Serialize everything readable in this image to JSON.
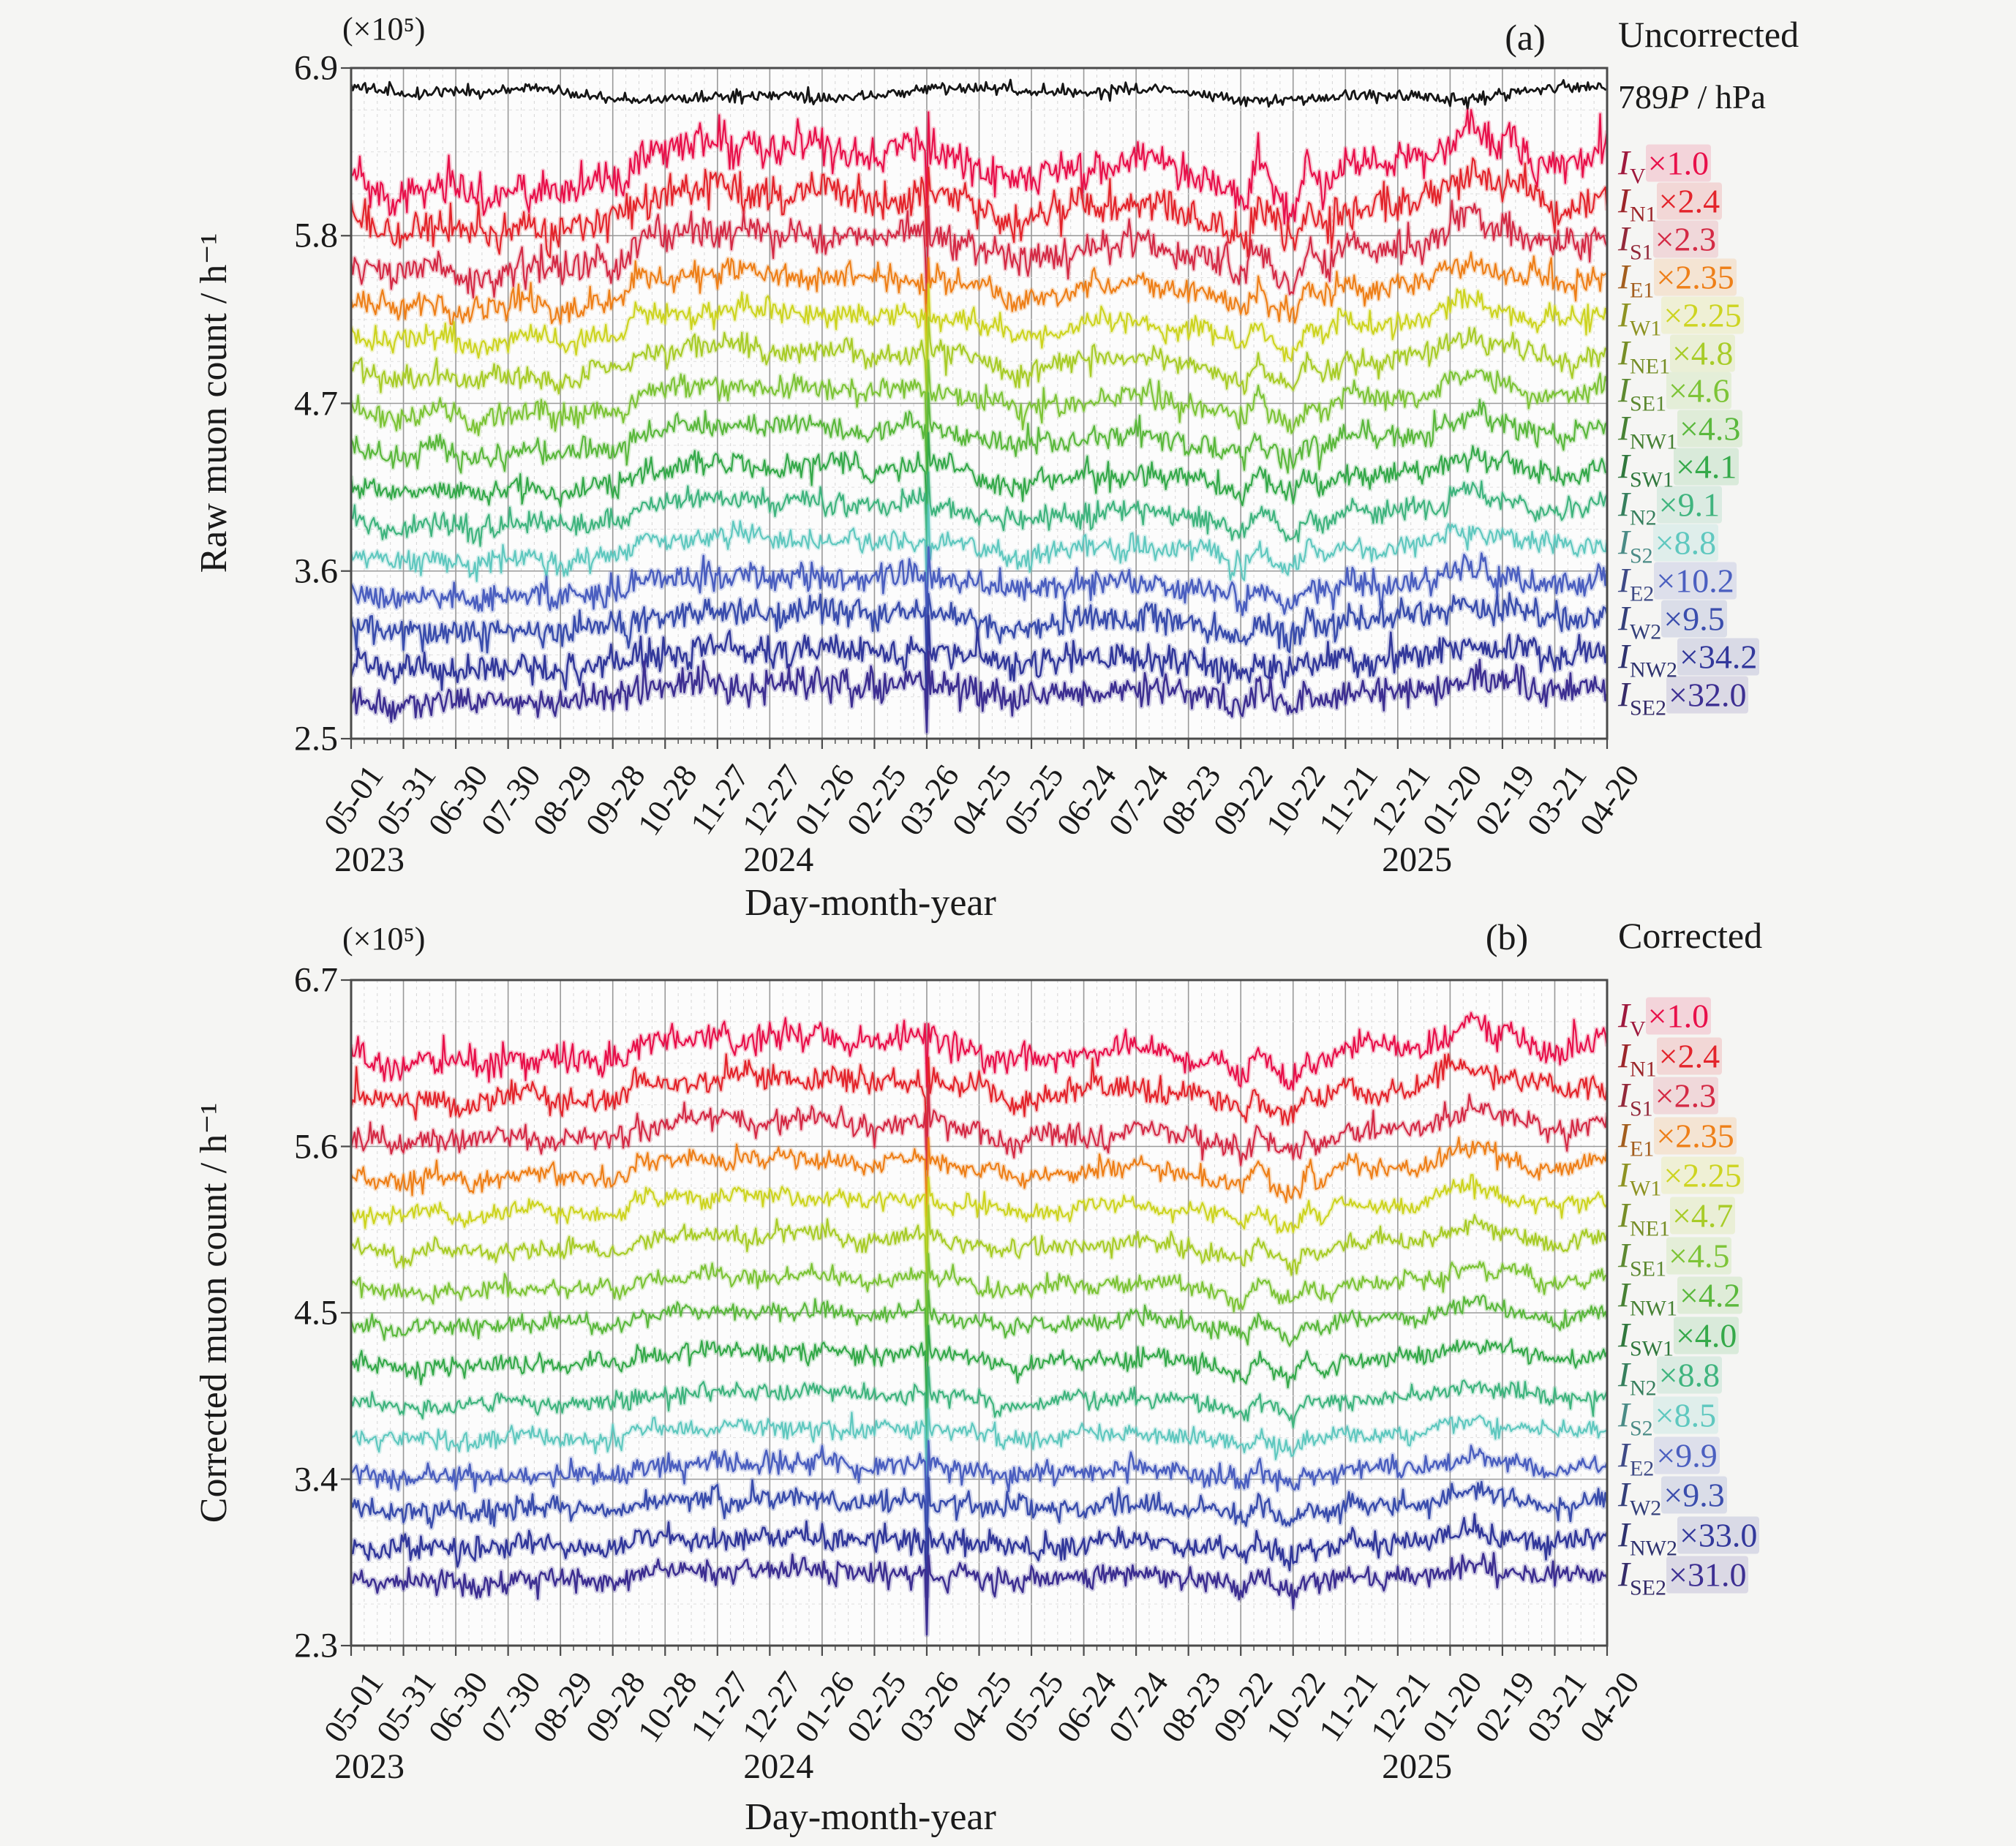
{
  "figure": {
    "background": "#f5f5f3",
    "xlabel": "Day-month-year",
    "panel_a": {
      "label": "(a)",
      "title": "Uncorrected",
      "ylabel": "Raw muon count / h⁻¹",
      "scale_note": "(×10⁵)",
      "pressure_legend": {
        "num": "789",
        "sym": "P",
        "unit": " / hPa"
      }
    },
    "panel_b": {
      "label": "(b)",
      "title": "Corrected",
      "ylabel": "Corrected muon count / h⁻¹",
      "scale_note": "(×10⁵)"
    }
  },
  "chart_data": {
    "type": "line",
    "xlabel": "Day-month-year",
    "x_unit": "days from 2023-05-01",
    "xtick_interval_days": 30,
    "x_range_days": [
      0,
      720
    ],
    "xticks": [
      "05-01",
      "05-31",
      "06-30",
      "07-30",
      "08-29",
      "09-28",
      "10-28",
      "11-27",
      "12-27",
      "01-26",
      "02-25",
      "03-26",
      "04-25",
      "05-25",
      "06-24",
      "07-24",
      "08-23",
      "09-22",
      "10-22",
      "11-21",
      "12-21",
      "01-20",
      "02-19",
      "03-21",
      "04-20"
    ],
    "year_labels": [
      {
        "text": "2023",
        "day": 0
      },
      {
        "text": "2024",
        "day": 245
      },
      {
        "text": "2025",
        "day": 611
      }
    ],
    "grid": {
      "major_color": "#999999",
      "minor_color": "#d6d6d6",
      "minor_per_major": 4
    },
    "panels": [
      {
        "id": "a",
        "panel_label": "(a)",
        "title": "Uncorrected",
        "ylabel": "Raw muon count / h⁻¹",
        "scale_note": "(×10⁵)",
        "ylim": [
          2.5,
          6.9
        ],
        "yticks": [
          "2.5",
          "3.6",
          "4.7",
          "5.8",
          "6.9"
        ],
        "pressure_series": {
          "legend_num": "789",
          "legend_sym": "P",
          "legend_unit": " / hPa",
          "color": "#161616",
          "baseline": 6.73,
          "noise": 0.02
        },
        "glitch": {
          "day": 330,
          "down": -0.32,
          "up": 0.2
        },
        "trend_keypoints": [
          [
            0,
            -0.02
          ],
          [
            25,
            -0.12
          ],
          [
            45,
            -0.05
          ],
          [
            70,
            -0.12
          ],
          [
            95,
            -0.06
          ],
          [
            120,
            -0.1
          ],
          [
            150,
            -0.03
          ],
          [
            158,
            -0.03
          ],
          [
            163,
            0.07
          ],
          [
            185,
            0.1
          ],
          [
            215,
            0.13
          ],
          [
            245,
            0.1
          ],
          [
            270,
            0.11
          ],
          [
            300,
            0.07
          ],
          [
            325,
            0.11
          ],
          [
            335,
            0.08
          ],
          [
            355,
            0.05
          ],
          [
            380,
            -0.06
          ],
          [
            395,
            -0.02
          ],
          [
            420,
            0.03
          ],
          [
            450,
            0.05
          ],
          [
            480,
            0.0
          ],
          [
            500,
            -0.05
          ],
          [
            512,
            -0.14
          ],
          [
            520,
            0.04
          ],
          [
            531,
            -0.1
          ],
          [
            540,
            -0.16
          ],
          [
            548,
            0.02
          ],
          [
            557,
            -0.06
          ],
          [
            570,
            0.05
          ],
          [
            585,
            0.02
          ],
          [
            600,
            0.04
          ],
          [
            615,
            0.06
          ],
          [
            632,
            0.16
          ],
          [
            645,
            0.2
          ],
          [
            655,
            0.12
          ],
          [
            665,
            0.13
          ],
          [
            680,
            0.06
          ],
          [
            695,
            0.04
          ],
          [
            710,
            0.07
          ],
          [
            720,
            0.09
          ]
        ],
        "series": [
          {
            "sym": "I",
            "sub": "V",
            "factor": "×1.0",
            "color": "#e8104a",
            "baseline": 6.22,
            "noise": 0.062,
            "trend_scale": 1.5
          },
          {
            "sym": "I",
            "sub": "N1",
            "factor": "×2.4",
            "color": "#e3242b",
            "baseline": 5.95,
            "noise": 0.058,
            "trend_scale": 1.35
          },
          {
            "sym": "I",
            "sub": "S1",
            "factor": "×2.3",
            "color": "#d42a45",
            "baseline": 5.68,
            "noise": 0.054,
            "trend_scale": 1.25
          },
          {
            "sym": "I",
            "sub": "E1",
            "factor": "×2.35",
            "color": "#ee7f18",
            "baseline": 5.43,
            "noise": 0.042,
            "trend_scale": 1.1
          },
          {
            "sym": "I",
            "sub": "W1",
            "factor": "×2.25",
            "color": "#cdd420",
            "baseline": 5.19,
            "noise": 0.038,
            "trend_scale": 1.0
          },
          {
            "sym": "I",
            "sub": "NE1",
            "factor": "×4.8",
            "color": "#a8cc28",
            "baseline": 4.95,
            "noise": 0.038,
            "trend_scale": 1.0
          },
          {
            "sym": "I",
            "sub": "SE1",
            "factor": "×4.6",
            "color": "#7dc437",
            "baseline": 4.7,
            "noise": 0.038,
            "trend_scale": 0.95
          },
          {
            "sym": "I",
            "sub": "NW1",
            "factor": "×4.3",
            "color": "#5ab83c",
            "baseline": 4.45,
            "noise": 0.04,
            "trend_scale": 0.9
          },
          {
            "sym": "I",
            "sub": "SW1",
            "factor": "×4.1",
            "color": "#35a94a",
            "baseline": 4.2,
            "noise": 0.04,
            "trend_scale": 0.85
          },
          {
            "sym": "I",
            "sub": "N2",
            "factor": "×9.1",
            "color": "#3fb47e",
            "baseline": 3.96,
            "noise": 0.038,
            "trend_scale": 0.8
          },
          {
            "sym": "I",
            "sub": "S2",
            "factor": "×8.8",
            "color": "#5fc8bf",
            "baseline": 3.73,
            "noise": 0.038,
            "trend_scale": 0.75
          },
          {
            "sym": "I",
            "sub": "E2",
            "factor": "×10.2",
            "color": "#4b5fc0",
            "baseline": 3.49,
            "noise": 0.046,
            "trend_scale": 0.7
          },
          {
            "sym": "I",
            "sub": "W2",
            "factor": "×9.5",
            "color": "#3a4dad",
            "baseline": 3.26,
            "noise": 0.048,
            "trend_scale": 0.65
          },
          {
            "sym": "I",
            "sub": "NW2",
            "factor": "×34.2",
            "color": "#32389b",
            "baseline": 3.01,
            "noise": 0.052,
            "trend_scale": 0.6
          },
          {
            "sym": "I",
            "sub": "SE2",
            "factor": "×32.0",
            "color": "#3d2f92",
            "baseline": 2.79,
            "noise": 0.052,
            "trend_scale": 0.6
          }
        ]
      },
      {
        "id": "b",
        "panel_label": "(b)",
        "title": "Corrected",
        "ylabel": "Corrected muon count / h⁻¹",
        "scale_note": "(×10⁵)",
        "ylim": [
          2.3,
          6.7
        ],
        "yticks": [
          "2.3",
          "3.4",
          "4.5",
          "5.6",
          "6.7"
        ],
        "pressure_series": null,
        "glitch": {
          "day": 330,
          "down": -0.35,
          "up": 0.15
        },
        "trend_keypoints": [
          [
            0,
            0.0
          ],
          [
            25,
            -0.05
          ],
          [
            45,
            -0.02
          ],
          [
            70,
            -0.05
          ],
          [
            95,
            0.01
          ],
          [
            120,
            -0.02
          ],
          [
            150,
            -0.02
          ],
          [
            158,
            -0.02
          ],
          [
            163,
            0.07
          ],
          [
            185,
            0.08
          ],
          [
            215,
            0.1
          ],
          [
            245,
            0.09
          ],
          [
            270,
            0.1
          ],
          [
            300,
            0.06
          ],
          [
            325,
            0.09
          ],
          [
            335,
            0.07
          ],
          [
            355,
            0.05
          ],
          [
            380,
            -0.04
          ],
          [
            395,
            -0.01
          ],
          [
            420,
            0.02
          ],
          [
            450,
            0.04
          ],
          [
            480,
            0.0
          ],
          [
            500,
            -0.04
          ],
          [
            512,
            -0.12
          ],
          [
            520,
            0.04
          ],
          [
            531,
            -0.09
          ],
          [
            540,
            -0.14
          ],
          [
            548,
            0.02
          ],
          [
            557,
            -0.05
          ],
          [
            570,
            0.05
          ],
          [
            585,
            0.02
          ],
          [
            600,
            0.04
          ],
          [
            615,
            0.05
          ],
          [
            632,
            0.14
          ],
          [
            645,
            0.18
          ],
          [
            655,
            0.1
          ],
          [
            665,
            0.11
          ],
          [
            680,
            0.05
          ],
          [
            695,
            0.03
          ],
          [
            710,
            0.06
          ],
          [
            720,
            0.08
          ]
        ],
        "series": [
          {
            "sym": "I",
            "sub": "V",
            "factor": "×1.0",
            "color": "#e8104a",
            "baseline": 6.2,
            "noise": 0.045,
            "trend_scale": 1.3
          },
          {
            "sym": "I",
            "sub": "N1",
            "factor": "×2.4",
            "color": "#e3242b",
            "baseline": 5.94,
            "noise": 0.042,
            "trend_scale": 1.2
          },
          {
            "sym": "I",
            "sub": "S1",
            "factor": "×2.3",
            "color": "#d42a45",
            "baseline": 5.67,
            "noise": 0.04,
            "trend_scale": 1.1
          },
          {
            "sym": "I",
            "sub": "E1",
            "factor": "×2.35",
            "color": "#ee7f18",
            "baseline": 5.42,
            "noise": 0.032,
            "trend_scale": 1.0
          },
          {
            "sym": "I",
            "sub": "W1",
            "factor": "×2.25",
            "color": "#cdd420",
            "baseline": 5.18,
            "noise": 0.029,
            "trend_scale": 0.95
          },
          {
            "sym": "I",
            "sub": "NE1",
            "factor": "×4.7",
            "color": "#a8cc28",
            "baseline": 4.93,
            "noise": 0.029,
            "trend_scale": 0.9
          },
          {
            "sym": "I",
            "sub": "SE1",
            "factor": "×4.5",
            "color": "#7dc437",
            "baseline": 4.67,
            "noise": 0.029,
            "trend_scale": 0.85
          },
          {
            "sym": "I",
            "sub": "NW1",
            "factor": "×4.2",
            "color": "#5ab83c",
            "baseline": 4.43,
            "noise": 0.03,
            "trend_scale": 0.8
          },
          {
            "sym": "I",
            "sub": "SW1",
            "factor": "×4.0",
            "color": "#35a94a",
            "baseline": 4.17,
            "noise": 0.03,
            "trend_scale": 0.75
          },
          {
            "sym": "I",
            "sub": "N2",
            "factor": "×8.8",
            "color": "#3fb47e",
            "baseline": 3.91,
            "noise": 0.029,
            "trend_scale": 0.7
          },
          {
            "sym": "I",
            "sub": "S2",
            "factor": "×8.5",
            "color": "#5fc8bf",
            "baseline": 3.68,
            "noise": 0.029,
            "trend_scale": 0.68
          },
          {
            "sym": "I",
            "sub": "E2",
            "factor": "×9.9",
            "color": "#4b5fc0",
            "baseline": 3.44,
            "noise": 0.035,
            "trend_scale": 0.65
          },
          {
            "sym": "I",
            "sub": "W2",
            "factor": "×9.3",
            "color": "#3a4dad",
            "baseline": 3.21,
            "noise": 0.037,
            "trend_scale": 0.6
          },
          {
            "sym": "I",
            "sub": "NW2",
            "factor": "×33.0",
            "color": "#32389b",
            "baseline": 2.96,
            "noise": 0.04,
            "trend_scale": 0.55
          },
          {
            "sym": "I",
            "sub": "SE2",
            "factor": "×31.0",
            "color": "#3d2f92",
            "baseline": 2.74,
            "noise": 0.04,
            "trend_scale": 0.55
          }
        ]
      }
    ]
  }
}
